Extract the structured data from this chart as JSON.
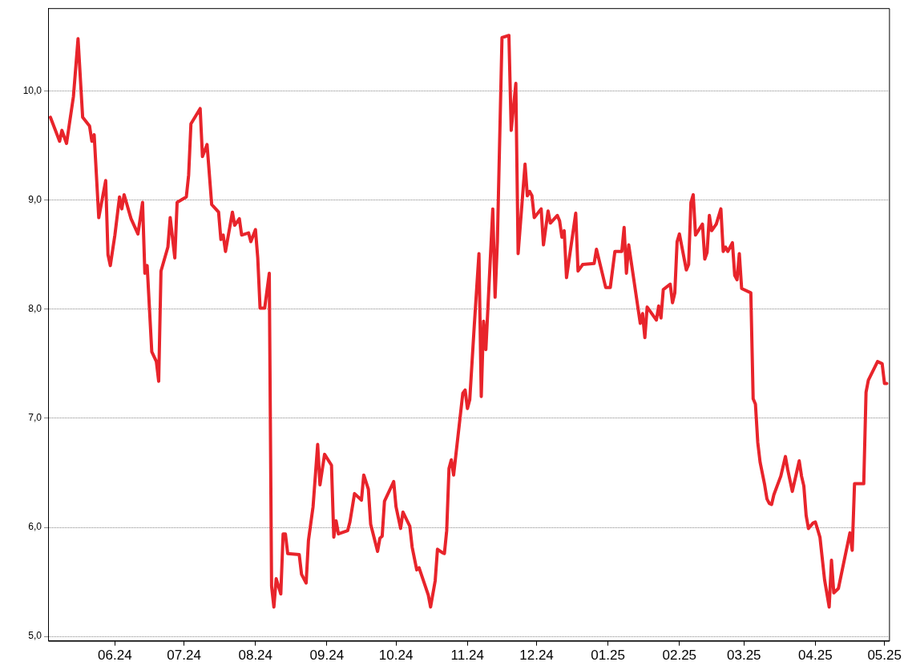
{
  "chart_data": {
    "type": "line",
    "grid": "y",
    "line_style": "solid",
    "xlim": [
      "2024-05-03",
      "2025-05-03"
    ],
    "xticks": [
      {
        "value": "2024-06-01",
        "label": "06.24"
      },
      {
        "value": "2024-07-01",
        "label": "07.24"
      },
      {
        "value": "2024-08-01",
        "label": "08.24"
      },
      {
        "value": "2024-09-01",
        "label": "09.24"
      },
      {
        "value": "2024-10-01",
        "label": "10.24"
      },
      {
        "value": "2024-11-01",
        "label": "11.24"
      },
      {
        "value": "2024-12-01",
        "label": "12.24"
      },
      {
        "value": "2025-01-01",
        "label": "01.25"
      },
      {
        "value": "2025-02-01",
        "label": "02.25"
      },
      {
        "value": "2025-03-01",
        "label": "03.25"
      },
      {
        "value": "2025-04-01",
        "label": "04.25"
      },
      {
        "value": "2025-05-01",
        "label": "05.25"
      }
    ],
    "ylim": [
      4.96,
      10.76
    ],
    "yticks": [
      {
        "value": 5,
        "label": "5,0"
      },
      {
        "value": 6,
        "label": "6,0"
      },
      {
        "value": 7,
        "label": "7,0"
      },
      {
        "value": 8,
        "label": "8,0"
      },
      {
        "value": 9,
        "label": "9,0"
      },
      {
        "value": 10,
        "label": "10,0"
      }
    ],
    "x": [
      "2024-05-04",
      "2024-05-08",
      "2024-05-09",
      "2024-05-11",
      "2024-05-14",
      "2024-05-16",
      "2024-05-18",
      "2024-05-21",
      "2024-05-22",
      "2024-05-23",
      "2024-05-25",
      "2024-05-28",
      "2024-05-29",
      "2024-05-30",
      "2024-06-01",
      "2024-06-03",
      "2024-06-04",
      "2024-06-05",
      "2024-06-08",
      "2024-06-11",
      "2024-06-13",
      "2024-06-14",
      "2024-06-15",
      "2024-06-17",
      "2024-06-19",
      "2024-06-20",
      "2024-06-21",
      "2024-06-24",
      "2024-06-25",
      "2024-06-27",
      "2024-06-28",
      "2024-07-02",
      "2024-07-03",
      "2024-07-04",
      "2024-07-08",
      "2024-07-09",
      "2024-07-11",
      "2024-07-13",
      "2024-07-16",
      "2024-07-17",
      "2024-07-18",
      "2024-07-19",
      "2024-07-22",
      "2024-07-23",
      "2024-07-25",
      "2024-07-26",
      "2024-07-29",
      "2024-07-30",
      "2024-08-01",
      "2024-08-02",
      "2024-08-03",
      "2024-08-05",
      "2024-08-07",
      "2024-08-08",
      "2024-08-09",
      "2024-08-10",
      "2024-08-12",
      "2024-08-13",
      "2024-08-14",
      "2024-08-15",
      "2024-08-20",
      "2024-08-21",
      "2024-08-23",
      "2024-08-24",
      "2024-08-26",
      "2024-08-28",
      "2024-08-29",
      "2024-08-31",
      "2024-09-03",
      "2024-09-04",
      "2024-09-05",
      "2024-09-06",
      "2024-09-10",
      "2024-09-11",
      "2024-09-13",
      "2024-09-16",
      "2024-09-17",
      "2024-09-19",
      "2024-09-20",
      "2024-09-23",
      "2024-09-24",
      "2024-09-25",
      "2024-09-26",
      "2024-09-30",
      "2024-10-01",
      "2024-10-03",
      "2024-10-04",
      "2024-10-07",
      "2024-10-08",
      "2024-10-10",
      "2024-10-11",
      "2024-10-15",
      "2024-10-16",
      "2024-10-18",
      "2024-10-19",
      "2024-10-21",
      "2024-10-22",
      "2024-10-23",
      "2024-10-24",
      "2024-10-25",
      "2024-10-26",
      "2024-10-30",
      "2024-10-31",
      "2024-11-01",
      "2024-11-02",
      "2024-11-04",
      "2024-11-06",
      "2024-11-07",
      "2024-11-08",
      "2024-11-09",
      "2024-11-12",
      "2024-11-13",
      "2024-11-14",
      "2024-11-16",
      "2024-11-19",
      "2024-11-20",
      "2024-11-22",
      "2024-11-23",
      "2024-11-26",
      "2024-11-27",
      "2024-11-28",
      "2024-11-29",
      "2024-11-30",
      "2024-12-03",
      "2024-12-04",
      "2024-12-06",
      "2024-12-07",
      "2024-12-10",
      "2024-12-11",
      "2024-12-12",
      "2024-12-13",
      "2024-12-14",
      "2024-12-18",
      "2024-12-19",
      "2024-12-21",
      "2024-12-26",
      "2024-12-27",
      "2024-12-31",
      "2025-01-02",
      "2025-01-04",
      "2025-01-07",
      "2025-01-08",
      "2025-01-09",
      "2025-01-10",
      "2025-01-15",
      "2025-01-16",
      "2025-01-17",
      "2025-01-18",
      "2025-01-22",
      "2025-01-23",
      "2025-01-24",
      "2025-01-25",
      "2025-01-28",
      "2025-01-29",
      "2025-01-30",
      "2025-01-31",
      "2025-02-01",
      "2025-02-04",
      "2025-02-05",
      "2025-02-06",
      "2025-02-07",
      "2025-02-08",
      "2025-02-11",
      "2025-02-12",
      "2025-02-13",
      "2025-02-14",
      "2025-02-15",
      "2025-02-17",
      "2025-02-19",
      "2025-02-20",
      "2025-02-21",
      "2025-02-22",
      "2025-02-24",
      "2025-02-25",
      "2025-02-26",
      "2025-02-27",
      "2025-02-28",
      "2025-03-04",
      "2025-03-05",
      "2025-03-06",
      "2025-03-07",
      "2025-03-08",
      "2025-03-10",
      "2025-03-11",
      "2025-03-12",
      "2025-03-13",
      "2025-03-14",
      "2025-03-17",
      "2025-03-19",
      "2025-03-20",
      "2025-03-22",
      "2025-03-25",
      "2025-03-26",
      "2025-03-27",
      "2025-03-28",
      "2025-03-29",
      "2025-03-31",
      "2025-04-01",
      "2025-04-02",
      "2025-04-03",
      "2025-04-05",
      "2025-04-07",
      "2025-04-08",
      "2025-04-09",
      "2025-04-11",
      "2025-04-16",
      "2025-04-17",
      "2025-04-18",
      "2025-04-22",
      "2025-04-23",
      "2025-04-24",
      "2025-04-28",
      "2025-04-30",
      "2025-05-01",
      "2025-05-02"
    ],
    "series": [
      {
        "color": "#e8242b",
        "values": [
          9.76,
          9.54,
          9.64,
          9.52,
          9.95,
          10.48,
          9.76,
          9.68,
          9.54,
          9.6,
          8.84,
          9.18,
          8.5,
          8.4,
          8.68,
          9.03,
          8.92,
          9.05,
          8.83,
          8.69,
          8.98,
          8.33,
          8.4,
          7.61,
          7.52,
          7.34,
          8.35,
          8.57,
          8.84,
          8.47,
          8.98,
          9.03,
          9.23,
          9.7,
          9.84,
          9.4,
          9.51,
          8.96,
          8.89,
          8.64,
          8.68,
          8.53,
          8.89,
          8.77,
          8.83,
          8.68,
          8.7,
          8.62,
          8.73,
          8.47,
          8.01,
          8.01,
          8.33,
          5.46,
          5.27,
          5.53,
          5.39,
          5.94,
          5.94,
          5.76,
          5.75,
          5.57,
          5.49,
          5.88,
          6.19,
          6.76,
          6.39,
          6.67,
          6.57,
          5.91,
          6.06,
          5.94,
          5.97,
          6.05,
          6.31,
          6.25,
          6.48,
          6.35,
          6.03,
          5.78,
          5.9,
          5.92,
          6.24,
          6.42,
          6.19,
          5.99,
          6.14,
          6.01,
          5.82,
          5.61,
          5.63,
          5.38,
          5.27,
          5.51,
          5.8,
          5.77,
          5.76,
          5.97,
          6.54,
          6.62,
          6.48,
          7.23,
          7.26,
          7.09,
          7.17,
          7.86,
          8.51,
          7.2,
          7.89,
          7.63,
          8.92,
          8.11,
          8.62,
          10.49,
          10.51,
          9.64,
          10.07,
          8.51,
          9.33,
          9.04,
          9.08,
          9.04,
          8.84,
          8.92,
          8.59,
          8.9,
          8.79,
          8.86,
          8.81,
          8.66,
          8.72,
          8.29,
          8.88,
          8.35,
          8.41,
          8.42,
          8.55,
          8.2,
          8.2,
          8.53,
          8.53,
          8.75,
          8.33,
          8.59,
          7.87,
          7.96,
          7.74,
          8.02,
          7.9,
          8.03,
          7.92,
          8.18,
          8.23,
          8.06,
          8.15,
          8.62,
          8.69,
          8.36,
          8.41,
          8.98,
          9.05,
          8.68,
          8.78,
          8.46,
          8.52,
          8.86,
          8.72,
          8.78,
          8.92,
          8.53,
          8.57,
          8.53,
          8.61,
          8.31,
          8.27,
          8.51,
          8.19,
          8.15,
          7.18,
          7.13,
          6.78,
          6.6,
          6.39,
          6.26,
          6.22,
          6.21,
          6.3,
          6.47,
          6.65,
          6.53,
          6.33,
          6.61,
          6.47,
          6.38,
          6.11,
          5.99,
          6.04,
          6.05,
          5.98,
          5.91,
          5.52,
          5.27,
          5.7,
          5.4,
          5.44,
          5.95,
          5.79,
          6.4,
          6.4,
          7.24,
          7.35,
          7.52,
          7.5,
          7.32,
          7.32
        ]
      }
    ]
  }
}
